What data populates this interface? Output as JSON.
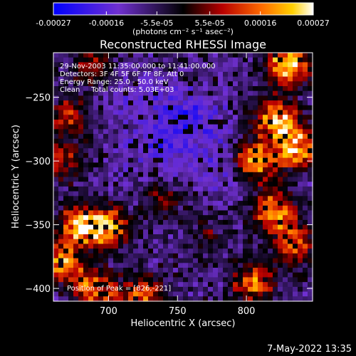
{
  "colorbar": {
    "tick_labels": [
      "-0.00027",
      "-0.00016",
      "-5.5e-05",
      "5.5e-05",
      "0.00016",
      "0.00027"
    ],
    "unit_label": "(photons cm⁻² s⁻¹ asec⁻²)",
    "range": [
      -0.00027,
      0.00027
    ]
  },
  "chart_data": {
    "type": "heatmap",
    "title": "Reconstructed RHESSI Image",
    "xlabel": "Heliocentric X (arcsec)",
    "ylabel": "Heliocentric Y (arcsec)",
    "xlim": [
      660,
      848
    ],
    "ylim": [
      -410,
      -215
    ],
    "x_ticks": [
      {
        "value": 700,
        "label": "700"
      },
      {
        "value": 750,
        "label": "750"
      },
      {
        "value": 800,
        "label": "800"
      }
    ],
    "y_ticks": [
      {
        "value": -250,
        "label": "−250"
      },
      {
        "value": -300,
        "label": "−300"
      },
      {
        "value": -350,
        "label": "−350"
      },
      {
        "value": -400,
        "label": "−400"
      }
    ],
    "info_lines": [
      "29-Nov-2003 11:35:00.000 to 11:41:00.000",
      "Detectors: 3F 4F 5F 6F 7F 8F, Att 0",
      "Energy Range: 25.0 - 50.0 keV",
      "Clean     Total counts: 5.03E+03"
    ],
    "peak_label": "Position of Peak = [826,-221]",
    "bright_sources": [
      {
        "x": 830,
        "y": -225,
        "strength": 1.0
      },
      {
        "x": 822,
        "y": -268,
        "strength": 0.95
      },
      {
        "x": 838,
        "y": -290,
        "strength": 0.95
      },
      {
        "x": 808,
        "y": -300,
        "strength": 0.9
      },
      {
        "x": 820,
        "y": -340,
        "strength": 0.85
      },
      {
        "x": 835,
        "y": -365,
        "strength": 0.7
      },
      {
        "x": 805,
        "y": -395,
        "strength": 0.75
      },
      {
        "x": 680,
        "y": -350,
        "strength": 0.95
      },
      {
        "x": 700,
        "y": -352,
        "strength": 0.85
      },
      {
        "x": 665,
        "y": -380,
        "strength": 0.8
      },
      {
        "x": 690,
        "y": -400,
        "strength": 0.75
      },
      {
        "x": 725,
        "y": -405,
        "strength": 0.7
      },
      {
        "x": 665,
        "y": -300,
        "strength": 0.55
      },
      {
        "x": 670,
        "y": -265,
        "strength": 0.5
      },
      {
        "x": 690,
        "y": -225,
        "strength": 0.45
      },
      {
        "x": 740,
        "y": -330,
        "strength": 0.35
      },
      {
        "x": 770,
        "y": -360,
        "strength": 0.3
      }
    ],
    "dim_regions": [
      {
        "x": 760,
        "y": -268,
        "strength": 1.0
      },
      {
        "x": 735,
        "y": -290,
        "strength": 0.6
      },
      {
        "x": 780,
        "y": -310,
        "strength": 0.5
      },
      {
        "x": 720,
        "y": -250,
        "strength": 0.45
      }
    ]
  },
  "footer": {
    "date": "7-May-2022 13:35"
  }
}
